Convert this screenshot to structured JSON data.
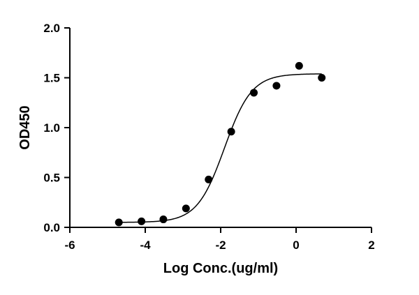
{
  "chart_data": {
    "type": "scatter",
    "title": "",
    "xlabel": "Log Conc.(ug/ml)",
    "ylabel": "OD450",
    "xlim": [
      -6,
      2
    ],
    "ylim": [
      0,
      2
    ],
    "x_ticks": [
      -6,
      -4,
      -2,
      0,
      2
    ],
    "y_ticks": [
      0,
      0.5,
      1,
      1.5,
      2
    ],
    "x_tick_labels": [
      "-6",
      "-4",
      "-2",
      "0",
      "2"
    ],
    "y_tick_labels": [
      "0.0",
      "0.5",
      "1.0",
      "1.5",
      "2.0"
    ],
    "grid": false,
    "legend": "none",
    "series": [
      {
        "x": [
          -4.7,
          -4.1,
          -3.52,
          -2.92,
          -2.32,
          -1.72,
          -1.12,
          -0.52,
          0.08,
          0.68
        ],
        "y": [
          0.05,
          0.06,
          0.08,
          0.19,
          0.48,
          0.96,
          1.35,
          1.42,
          1.62,
          1.5
        ]
      }
    ],
    "fit_curve": {
      "model": "4PL",
      "bottom": 0.05,
      "top": 1.54,
      "log_ec50": -1.9,
      "hill_slope": 1.2
    },
    "colors": {
      "marker": "#000000",
      "curve": "#000000",
      "axis": "#000000"
    }
  }
}
